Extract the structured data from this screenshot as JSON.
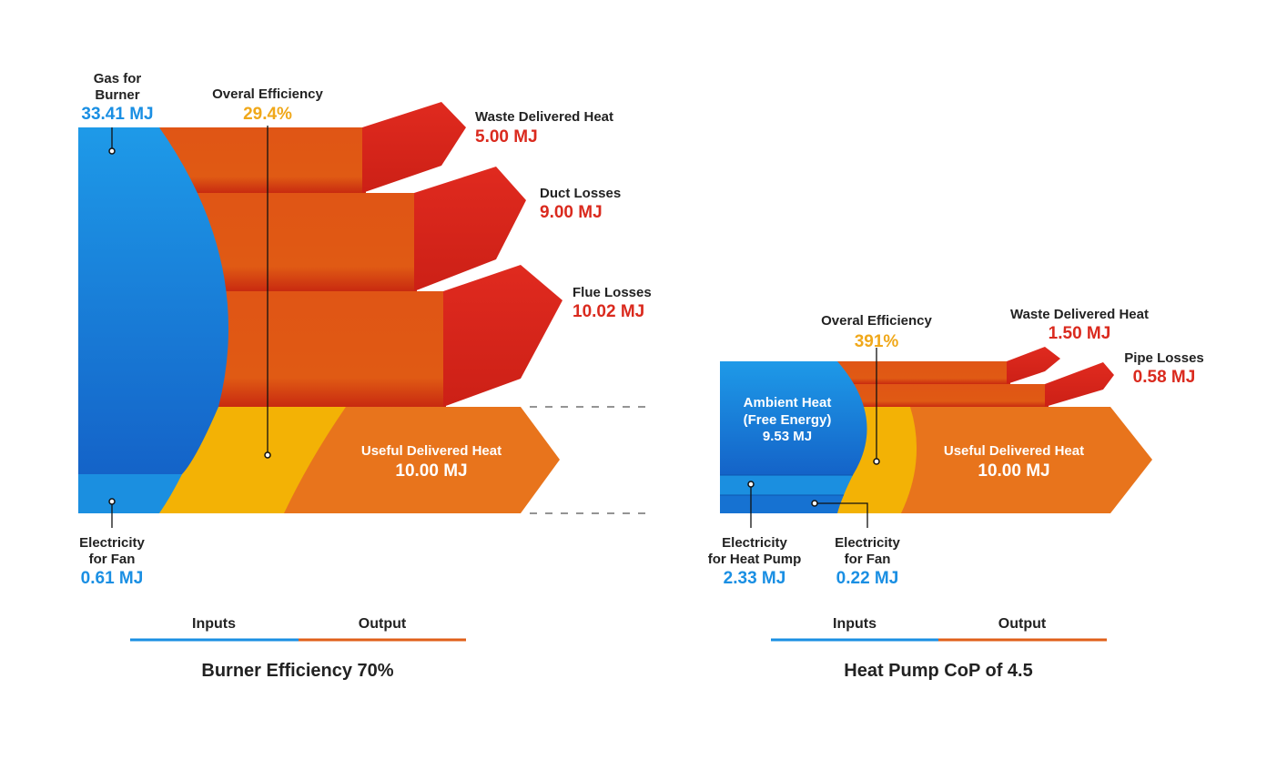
{
  "colors": {
    "input_blue": "#1a8fe3",
    "output_orange": "#e8741c",
    "loss_red": "#da2a1e",
    "efficiency_yellow": "#f0a81a"
  },
  "burner": {
    "gas": {
      "label_line1": "Gas for",
      "label_line2": "Burner",
      "value": "33.41 MJ"
    },
    "electricity": {
      "label_line1": "Electricity",
      "label_line2": "for Fan",
      "value": "0.61 MJ"
    },
    "efficiency": {
      "label": "Overal Efficiency",
      "value": "29.4%"
    },
    "waste": {
      "label": "Waste Delivered Heat",
      "value": "5.00 MJ"
    },
    "duct": {
      "label": "Duct Losses",
      "value": "9.00 MJ"
    },
    "flue": {
      "label": "Flue Losses",
      "value": "10.02 MJ"
    },
    "useful": {
      "label": "Useful Delivered Heat",
      "value": "10.00 MJ"
    },
    "legend": {
      "inputs": "Inputs",
      "output": "Output"
    },
    "caption": "Burner Efficiency 70%"
  },
  "heatpump": {
    "efficiency": {
      "label": "Overal Efficiency",
      "value": "391%"
    },
    "waste": {
      "label": "Waste Delivered Heat",
      "value": "1.50 MJ"
    },
    "pipe": {
      "label": "Pipe Losses",
      "value": "0.58 MJ"
    },
    "ambient": {
      "line1": "Ambient Heat",
      "line2": "(Free Energy)",
      "value": "9.53 MJ"
    },
    "useful": {
      "label": "Useful Delivered Heat",
      "value": "10.00 MJ"
    },
    "elec_pump": {
      "label_line1": "Electricity",
      "label_line2": "for Heat Pump",
      "value": "2.33 MJ"
    },
    "elec_fan": {
      "label_line1": "Electricity",
      "label_line2": "for Fan",
      "value": "0.22 MJ"
    },
    "legend": {
      "inputs": "Inputs",
      "output": "Output"
    },
    "caption": "Heat Pump CoP of 4.5"
  }
}
